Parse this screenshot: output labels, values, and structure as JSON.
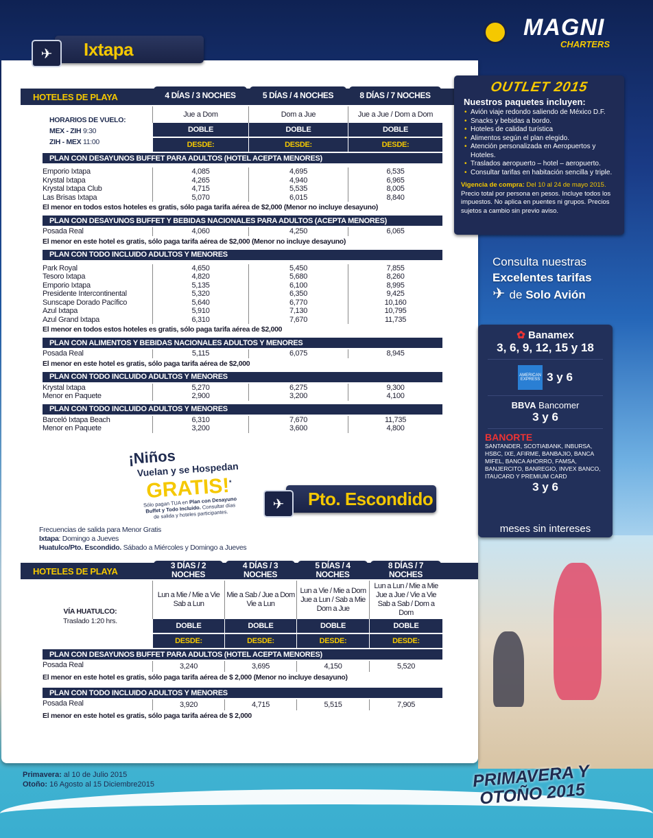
{
  "brand": {
    "logo_main": "MAGNI",
    "logo_sub": "CHARTERS"
  },
  "ixtapa": {
    "title": "Ixtapa",
    "header_label": "HOTELES DE PLAYA",
    "durations": [
      "4 DÍAS / 3 NOCHES",
      "5 DÍAS / 4 NOCHES",
      "8 DÍAS / 7 NOCHES"
    ],
    "days": [
      "Jue a Dom",
      "Dom a Jue",
      "Jue a Jue /  Dom a Dom"
    ],
    "room": [
      "DOBLE",
      "DOBLE",
      "DOBLE"
    ],
    "from": [
      "DESDE:",
      "DESDE:",
      "DESDE:"
    ],
    "flight_title": "HORARIOS DE VUELO:",
    "flights": [
      {
        "route": "MEX - ZIH",
        "time": "9:30"
      },
      {
        "route": "ZIH - MEX",
        "time": "11:00"
      }
    ],
    "plans": [
      {
        "title": "PLAN CON DESAYUNOS BUFFET PARA ADULTOS (HOTEL ACEPTA MENORES)",
        "hotels": [
          {
            "name": "Emporio Ixtapa",
            "prices": [
              "4,085",
              "4,695",
              "6,535"
            ]
          },
          {
            "name": "Krystal Ixtapa",
            "prices": [
              "4,265",
              "4,940",
              "6,965"
            ]
          },
          {
            "name": "Krystal Ixtapa Club",
            "prices": [
              "4,715",
              "5,535",
              "8,005"
            ]
          },
          {
            "name": "Las Brisas Ixtapa",
            "prices": [
              "5,070",
              "6,015",
              "8,840"
            ]
          }
        ],
        "note": "El menor en todos estos hoteles es gratis, sólo paga tarifa aérea de $2,000 (Menor no incluye desayuno)"
      },
      {
        "title": "PLAN CON DESAYUNOS BUFFET Y BEBIDAS NACIONALES PARA ADULTOS (ACEPTA MENORES)",
        "hotels": [
          {
            "name": "Posada Real",
            "prices": [
              "4,060",
              "4,250",
              "6,065"
            ]
          }
        ],
        "note": "El menor en este hotel es gratis, sólo paga tarifa aérea de $2,000 (Menor no incluye desayuno)"
      },
      {
        "title": "PLAN CON TODO INCLUIDO ADULTOS Y MENORES",
        "hotels": [
          {
            "name": "Park Royal",
            "prices": [
              "4,650",
              "5,450",
              "7,855"
            ]
          },
          {
            "name": "Tesoro Ixtapa",
            "prices": [
              "4,820",
              "5,680",
              "8,260"
            ]
          },
          {
            "name": "Emporio Ixtapa",
            "prices": [
              "5,135",
              "6,100",
              "8,995"
            ]
          },
          {
            "name": "Presidente Intercontinental",
            "prices": [
              "5,320",
              "6,350",
              "9,425"
            ]
          },
          {
            "name": "Sunscape Dorado Pacífico",
            "prices": [
              "5,640",
              "6,770",
              "10,160"
            ]
          },
          {
            "name": "Azul Ixtapa",
            "prices": [
              "5,910",
              "7,130",
              "10,795"
            ]
          },
          {
            "name": "Azul Grand Ixtapa",
            "prices": [
              "6,310",
              "7,670",
              "11,735"
            ]
          }
        ],
        "note": "El menor en todos estos hoteles es gratis, sólo paga tarifa aérea de $2,000"
      },
      {
        "title": "PLAN CON ALIMENTOS Y BEBIDAS NACIONALES ADULTOS Y MENORES",
        "hotels": [
          {
            "name": "Posada Real",
            "prices": [
              "5,115",
              "6,075",
              "8,945"
            ]
          }
        ],
        "note": "El menor en este hotel es gratis, sólo paga tarifa aérea de $2,000"
      },
      {
        "title": "PLAN CON TODO INCLUIDO ADULTOS Y MENORES",
        "hotels": [
          {
            "name": "Krystal Ixtapa",
            "prices": [
              "5,270",
              "6,275",
              "9,300"
            ]
          },
          {
            "name": "Menor en Paquete",
            "prices": [
              "2,900",
              "3,200",
              "4,100"
            ]
          }
        ],
        "note": ""
      },
      {
        "title": "PLAN CON TODO INCLUIDO ADULTOS Y MENORES",
        "hotels": [
          {
            "name": "Barceló Ixtapa Beach",
            "prices": [
              "6,310",
              "7,670",
              "11,735"
            ]
          },
          {
            "name": "Menor en Paquete",
            "prices": [
              "3,200",
              "3,600",
              "4,800"
            ]
          }
        ],
        "note": ""
      }
    ]
  },
  "promo": {
    "line1": "¡Niños",
    "line2": "Vuelan y se Hospedan",
    "line3": "GRATIS!",
    "asterisk": "*",
    "fine1": "Sólo pagan TUA en ",
    "fine1b": "Plan con Desayuno",
    "fine2": "Buffet y Todo Incluido.",
    "fine2b": " Consultar días",
    "fine3": "de salida y hoteles participantes."
  },
  "frequencies": {
    "title": "Frecuencias de salida para Menor Gratis",
    "ixtapa_label": "Ixtapa",
    "ixtapa_value": ": Domingo a Jueves",
    "huatulco_label": "Huatulco/Pto. Escondido.",
    "huatulco_value": " Sábado a Miércoles y Domingo a Jueves"
  },
  "escondido": {
    "title": "Pto. Escondido",
    "header_label": "HOTELES DE PLAYA",
    "durations": [
      "3 DÍAS / 2 NOCHES",
      "4 DÍAS / 3 NOCHES",
      "5 DÍAS / 4 NOCHES",
      "8 DÍAS / 7 NOCHES"
    ],
    "days": [
      "Lun a Mie / Mie a Vie\nSab a Lun",
      "Mie a Sab / Jue a Dom\nVie a Lun",
      "Lun a Vie / Mie a Dom\nJue a Lun / Sab a Mie\nDom a Jue",
      "Lun a Lun / Mie a Mie\nJue a Jue  / Vie a Vie\nSab a Sab / Dom a Dom"
    ],
    "room": [
      "DOBLE",
      "DOBLE",
      "DOBLE",
      "DOBLE"
    ],
    "from": [
      "DESDE:",
      "DESDE:",
      "DESDE:",
      "DESDE:"
    ],
    "via_title": "VÍA HUATULCO:",
    "via_transfer": "Traslado 1:20 hrs.",
    "plans": [
      {
        "title": "PLAN CON DESAYUNOS BUFFET PARA ADULTOS (HOTEL ACEPTA MENORES)",
        "hotels": [
          {
            "name": "Posada Real",
            "prices": [
              "3,240",
              "3,695",
              "4,150",
              "5,520"
            ]
          }
        ],
        "note": "El menor en este hotel es gratis, sólo paga tarifa aérea de $ 2,000 (Menor no incluye desayuno)"
      },
      {
        "title": "PLAN CON TODO INCLUIDO ADULTOS Y MENORES",
        "hotels": [
          {
            "name": "Posada Real",
            "prices": [
              "3,920",
              "4,715",
              "5,515",
              "7,905"
            ]
          }
        ],
        "note": "El menor en este hotel es gratis, sólo paga tarifa aérea de $ 2,000"
      }
    ]
  },
  "outlet": {
    "title": "OUTLET 2015",
    "subtitle": "Nuestros paquetes incluyen:",
    "items": [
      "Avión viaje redondo saliendo de México D.F.",
      "Snacks y bebidas a bordo.",
      "Hoteles de calidad turística",
      "Alimentos según el plan elegido.",
      "Atención personalizada en Aeropuertos  y Hoteles.",
      "Traslados aeropuerto – hotel – aeropuerto.",
      "Consultar  tarifas en habitación  sencilla y triple."
    ],
    "validity_label": "Vigencia de compra:",
    "validity_value": " Del 10 al 24 de mayo 2015.",
    "disclaimer": "Precio total por persona  en pesos. Incluye todos los impuestos. No aplica en puentes ni grupos. Precios sujetos a cambio sin previo aviso."
  },
  "flight_only": {
    "line1": "Consulta nuestras",
    "line2": "Excelentes tarifas",
    "line3_pre": "de ",
    "line3": "Solo Avión"
  },
  "banks": {
    "banamex": "Banamex",
    "banamex_terms": "3, 6, 9, 12, 15 y 18",
    "amex_logo": "AMERICAN EXPRESS",
    "amex_terms": "3 y 6",
    "bbva": "BBVA",
    "bancomer": " Bancomer",
    "bbva_terms": "3 y 6",
    "banorte": "BANORTE",
    "others": "SANTANDER, SCOTIABANK, INBURSA, HSBC, IXE, AFIRME, BANBAJIO, BANCA MIFEL, BANCA AHORRO, FAMSA,  BANJERCITO, BANREGIO, INVEX BANCO, ITAUCARD Y PREMIUM CARD",
    "others_terms": "3 y 6",
    "footer": "meses sin intereses"
  },
  "seasons": {
    "spring_label": "Primavera:",
    "spring_value": " al 10 de Julio 2015",
    "fall_label": "Otoño:",
    "fall_value": " 16 Agosto al 15 Diciembre2015"
  },
  "campaign": {
    "line1": "PRIMAVERA Y",
    "line2": "OTOÑO 2015"
  },
  "colors": {
    "navy": "#1f2b4f",
    "accent_yellow": "#f5c800"
  }
}
